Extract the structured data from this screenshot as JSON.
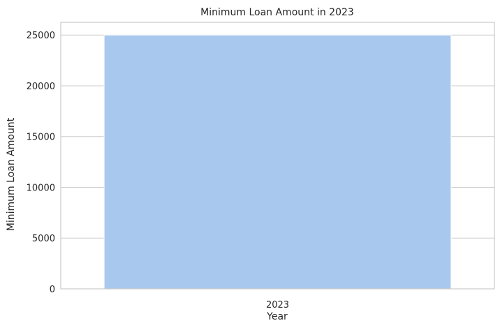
{
  "chart_data": {
    "type": "bar",
    "title": "Minimum Loan Amount in 2023",
    "xlabel": "Year",
    "ylabel": "Minimum Loan Amount",
    "categories": [
      "2023"
    ],
    "values": [
      25000
    ],
    "ylim": [
      0,
      26250
    ],
    "yticks": [
      0,
      5000,
      10000,
      15000,
      20000,
      25000
    ],
    "grid": "y",
    "colors": {
      "bar": "#a9c8ed",
      "grid": "#cccccc",
      "spine": "#cccccc",
      "text": "#262626"
    }
  }
}
